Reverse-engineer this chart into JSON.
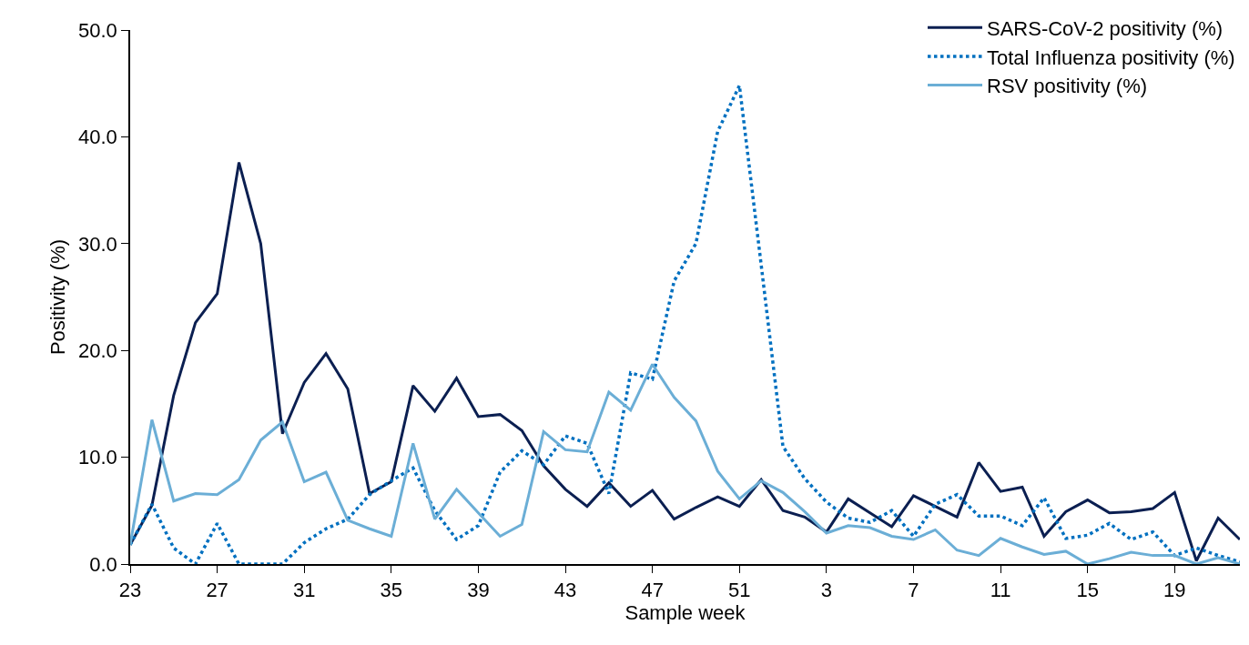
{
  "chart_data": {
    "type": "line",
    "xlabel": "Sample week",
    "ylabel": "Positivity (%)",
    "categories": [
      "23",
      null,
      null,
      null,
      "27",
      null,
      null,
      null,
      "31",
      null,
      null,
      null,
      "35",
      null,
      null,
      null,
      "39",
      null,
      null,
      null,
      "43",
      null,
      null,
      null,
      "47",
      null,
      null,
      null,
      "51",
      null,
      null,
      null,
      "3",
      null,
      null,
      null,
      "7",
      null,
      null,
      null,
      "11",
      null,
      null,
      null,
      "15",
      null,
      null,
      null,
      "19",
      null,
      null,
      null
    ],
    "ylim": [
      0,
      50
    ],
    "yticks": [
      {
        "value": 0,
        "label": "0.0"
      },
      {
        "value": 10,
        "label": "10.0"
      },
      {
        "value": 20,
        "label": "20.0"
      },
      {
        "value": 30,
        "label": "30.0"
      },
      {
        "value": 40,
        "label": "40.0"
      },
      {
        "value": 50,
        "label": "50.0"
      }
    ],
    "legend": "top right",
    "marker": "none",
    "series": [
      {
        "name": "SARS-CoV-2 positivity (%)",
        "color": "#0b1f51",
        "line_style": "solid",
        "values": [
          1.8,
          5.5,
          15.8,
          22.6,
          25.3,
          37.6,
          30.0,
          12.2,
          17.0,
          19.7,
          16.4,
          6.6,
          7.7,
          16.7,
          14.3,
          17.4,
          13.8,
          14.0,
          12.5,
          9.2,
          7.0,
          5.4,
          7.6,
          5.4,
          6.9,
          4.2,
          5.3,
          6.3,
          5.4,
          7.9,
          5.0,
          4.4,
          3.0,
          6.1,
          4.8,
          3.5,
          6.4,
          5.4,
          4.4,
          9.5,
          6.8,
          7.2,
          2.6,
          4.9,
          6.0,
          4.8,
          4.9,
          5.2,
          6.7,
          0.3,
          4.3,
          2.3
        ]
      },
      {
        "name": "Total Influenza positivity (%)",
        "color": "#0070c0",
        "line_style": "dotted",
        "values": [
          1.8,
          5.6,
          1.5,
          0.0,
          3.8,
          0.0,
          0.0,
          0.0,
          2.0,
          3.3,
          4.2,
          6.5,
          7.8,
          9.0,
          5.0,
          2.3,
          3.6,
          8.6,
          10.6,
          9.3,
          12.0,
          11.3,
          6.6,
          17.9,
          17.3,
          26.5,
          30.0,
          40.5,
          44.8,
          28.0,
          11.0,
          8.0,
          5.8,
          4.3,
          3.9,
          5.0,
          2.6,
          5.6,
          6.5,
          4.5,
          4.5,
          3.6,
          6.2,
          2.4,
          2.7,
          3.8,
          2.3,
          3.0,
          0.8,
          1.5,
          0.8,
          0.2
        ]
      },
      {
        "name": "RSV positivity (%)",
        "color": "#6baed6",
        "line_style": "solid",
        "values": [
          1.8,
          13.5,
          5.9,
          6.6,
          6.5,
          7.9,
          11.6,
          13.3,
          7.7,
          8.6,
          4.1,
          3.3,
          2.6,
          11.3,
          4.2,
          7.0,
          4.8,
          2.6,
          3.7,
          12.4,
          10.7,
          10.5,
          16.1,
          14.4,
          18.7,
          15.6,
          13.4,
          8.7,
          6.1,
          7.8,
          6.7,
          4.9,
          2.9,
          3.6,
          3.4,
          2.6,
          2.3,
          3.2,
          1.3,
          0.8,
          2.4,
          1.6,
          0.9,
          1.2,
          0.0,
          0.5,
          1.1,
          0.8,
          0.8,
          0.0,
          0.6,
          0.0
        ]
      }
    ]
  }
}
